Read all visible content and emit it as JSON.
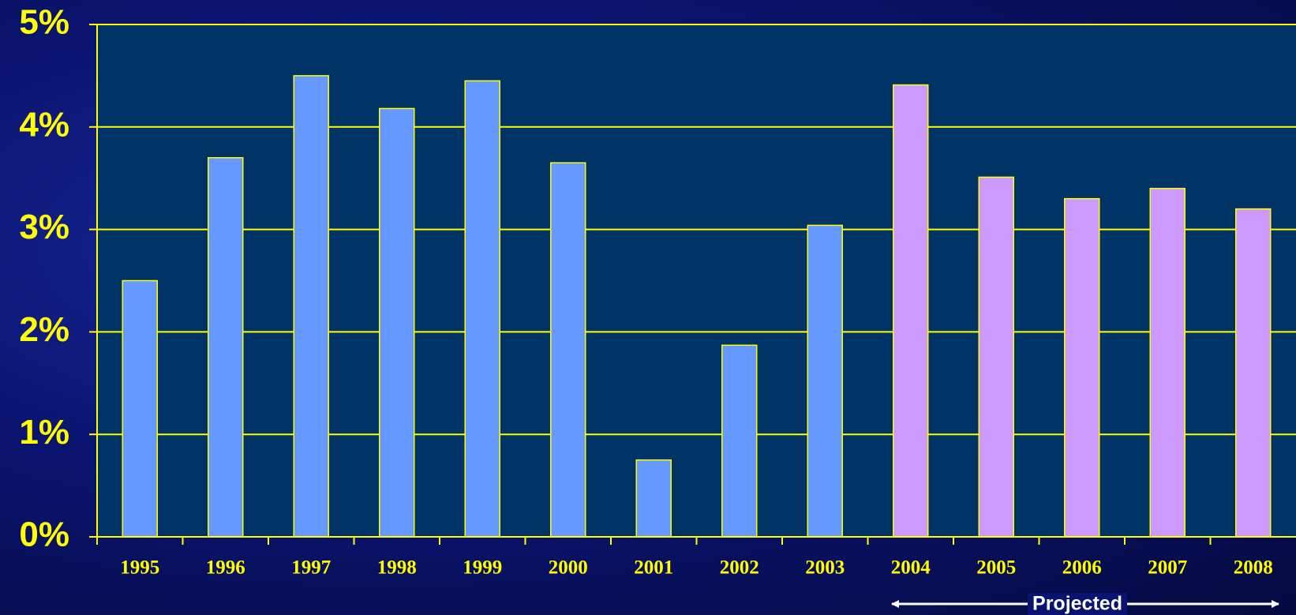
{
  "chart_data": {
    "type": "bar",
    "categories": [
      "1995",
      "1996",
      "1997",
      "1998",
      "1999",
      "2000",
      "2001",
      "2002",
      "2003",
      "2004",
      "2005",
      "2006",
      "2007",
      "2008"
    ],
    "values": [
      2.5,
      3.7,
      4.5,
      4.18,
      4.45,
      3.65,
      0.75,
      1.87,
      3.04,
      4.41,
      3.51,
      3.3,
      3.4,
      3.2
    ],
    "colors": [
      "#6699ff",
      "#6699ff",
      "#6699ff",
      "#6699ff",
      "#6699ff",
      "#6699ff",
      "#6699ff",
      "#6699ff",
      "#6699ff",
      "#cc99ff",
      "#cc99ff",
      "#cc99ff",
      "#cc99ff",
      "#cc99ff"
    ],
    "ylim": [
      0,
      5
    ],
    "yticks": [
      {
        "value": 0,
        "label": "0%"
      },
      {
        "value": 1,
        "label": "1%"
      },
      {
        "value": 2,
        "label": "2%"
      },
      {
        "value": 3,
        "label": "3%"
      },
      {
        "value": 4,
        "label": "4%"
      },
      {
        "value": 5,
        "label": "5%"
      }
    ],
    "grid": true,
    "annotation": "Projected"
  }
}
